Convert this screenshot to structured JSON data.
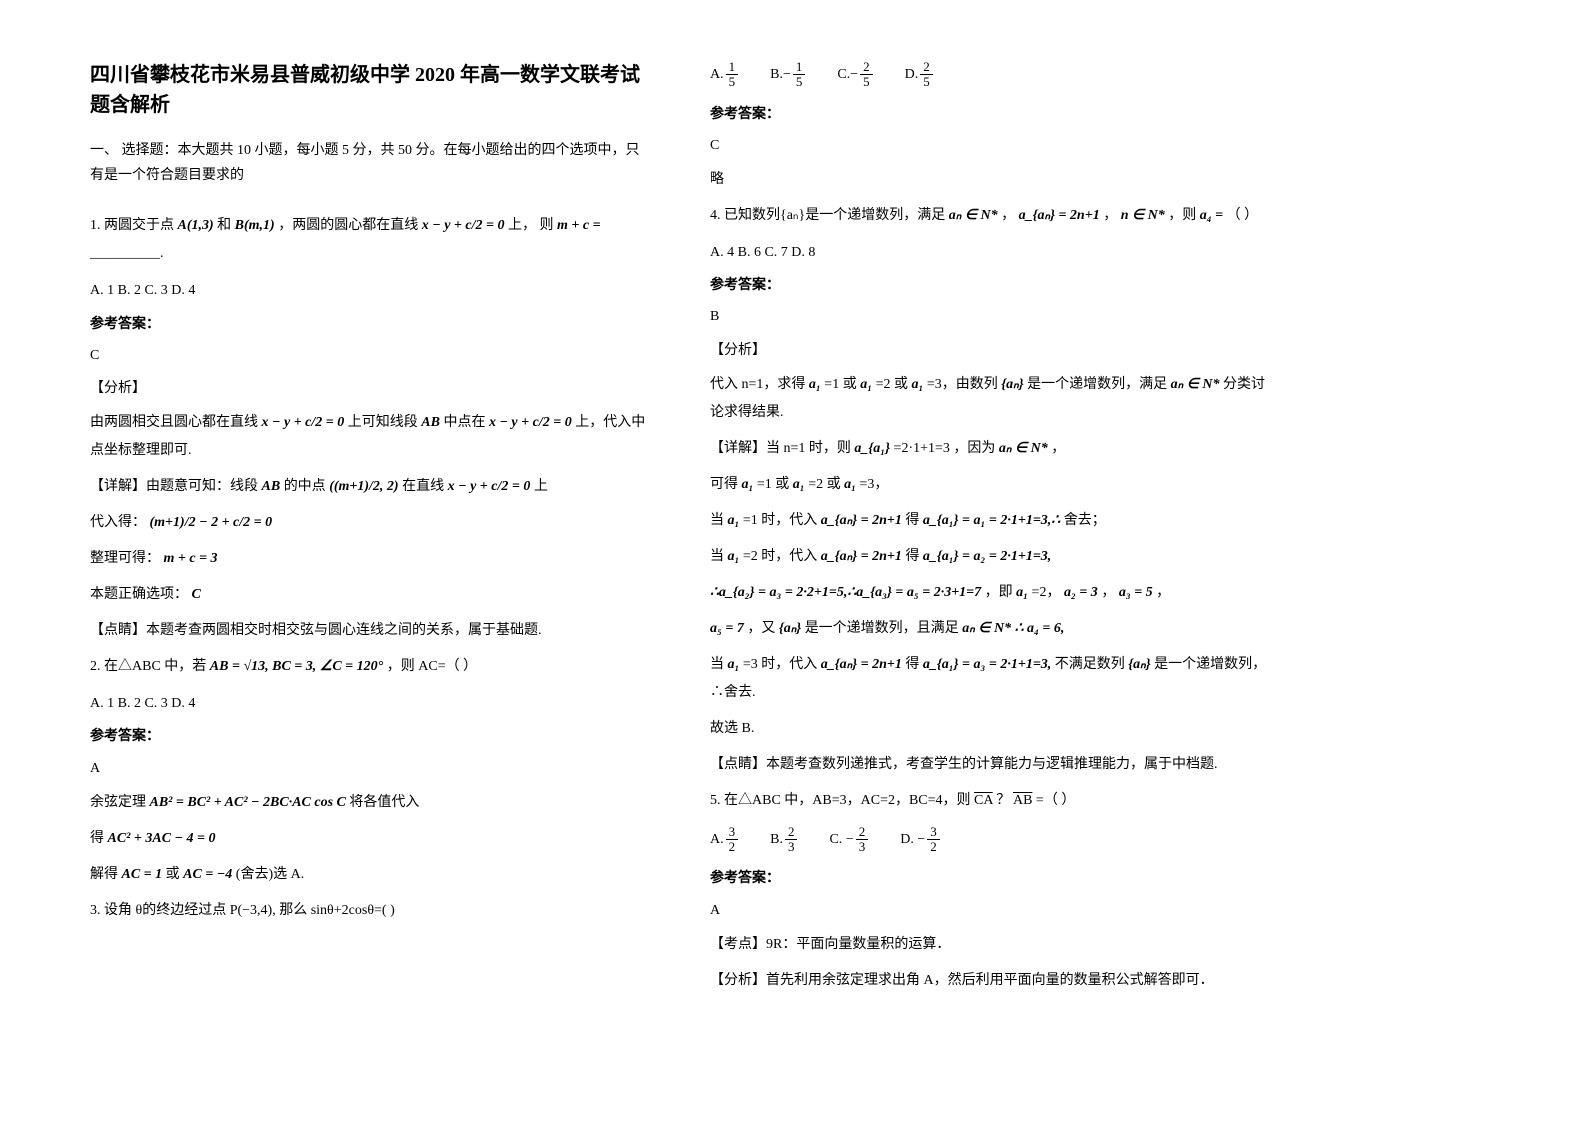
{
  "title": "四川省攀枝花市米易县普威初级中学 2020 年高一数学文联考试题含解析",
  "section1_heading": "一、 选择题：本大题共 10 小题，每小题 5 分，共 50 分。在每小题给出的四个选项中，只有是一个符合题目要求的",
  "q1": {
    "prefix": "1. 两圆交于点",
    "pt_a": "A(1,3)",
    "mid1": "和",
    "pt_b": "B(m,1)",
    "mid2": "，两圆的圆心都在直线",
    "eq1": "x − y + c/2 = 0",
    "mid3": "上，  则",
    "var1": "m + c =",
    "blank": " __________.",
    "opts": "A. 1    B. 2    C. 3    D. 4",
    "answer_label": "参考答案：",
    "answer": "C",
    "analysis_tag": "【分析】",
    "analysis_body": "由两圆相交且圆心都在直线",
    "analysis_eq1": "x − y + c/2 = 0",
    "analysis_body2": "上可知线段",
    "ab": "AB",
    "analysis_body3": "中点在",
    "analysis_eq2": "x − y + c/2 = 0",
    "analysis_body4": "上，代入中点坐标整理即可.",
    "detail_tag": "【详解】由题意可知：线段",
    "detail_ab": "AB",
    "detail_2": "的中点",
    "midpoint": "((m+1)/2, 2)",
    "detail_3": "在直线",
    "detail_eq": "x − y + c/2 = 0",
    "detail_4": "上",
    "sub_label": "代入得：",
    "sub_eq": "(m+1)/2 − 2 + c/2 = 0",
    "simplify_label": "整理可得：",
    "simplify_eq": "m + c = 3",
    "correct_label": "本题正确选项：",
    "correct": "C",
    "point_tag": "【点睛】本题考查两圆相交时相交弦与圆心连线之间的关系，属于基础题."
  },
  "q2": {
    "prefix": "2. 在△ABC 中，若",
    "cond": "AB = √13, BC = 3, ∠C = 120°",
    "suffix": "，则 AC=（            ）",
    "opts": "A. 1    B. 2            C. 3    D. 4",
    "answer_label": "参考答案：",
    "answer": "A",
    "step1_label": "余弦定理",
    "step1_eq": "AB² = BC² + AC² − 2BC·AC cos C",
    "step1_suffix": "将各值代入",
    "step2_label": "得",
    "step2_eq": "AC² + 3AC − 4 = 0",
    "step3_label": "解得",
    "step3_eq1": "AC = 1",
    "step3_mid": "或",
    "step3_eq2": "AC = −4",
    "step3_suffix": "(舍去)选 A."
  },
  "q3": {
    "text": "3. 设角 θ的终边经过点 P(−3,4), 那么 sinθ+2cosθ=(      )",
    "opt_a": "A.",
    "opt_a_frac_num": "1",
    "opt_a_frac_den": "5",
    "opt_b": "B.",
    "opt_b_neg": "−",
    "opt_b_frac_num": "1",
    "opt_b_frac_den": "5",
    "opt_c": "C.",
    "opt_c_neg": "−",
    "opt_c_frac_num": "2",
    "opt_c_frac_den": "5",
    "opt_d": "D.",
    "opt_d_frac_num": "2",
    "opt_d_frac_den": "5",
    "answer_label": "参考答案：",
    "answer": "C",
    "extra": "略"
  },
  "q4": {
    "prefix": "4. 已知数列{aₙ}是一个递增数列，满足",
    "c1": "aₙ ∈ N*",
    "mid1": "，",
    "c2": "a_{aₙ} = 2n+1",
    "mid2": "，",
    "c3": "n ∈ N*",
    "mid3": "，则",
    "c4": "a₄ =",
    "suffix": "（           ）",
    "opts": "A. 4    B. 6    C. 7    D. 8",
    "answer_label": "参考答案：",
    "answer": "B",
    "analysis_tag": "【分析】",
    "a1": "代入 n=1，求得",
    "a1_e1": "a₁",
    "a1_t1": "=1 或",
    "a1_e2": "a₁",
    "a1_t2": "=2 或",
    "a1_e3": "a₁",
    "a1_t3": "=3，由数列",
    "a1_e4": "{aₙ}",
    "a1_t4": "是一个递增数列，满足",
    "a1_e5": "aₙ ∈ N*",
    "a1_t5": "分类讨论求得结果.",
    "d_tag": "【详解】当 n=1 时，则",
    "d_e1": "a_{a₁}",
    "d_t1": "=2·1+1=3",
    "d_t2": "，因为",
    "d_e2": "aₙ ∈ N*",
    "d_t3": "，",
    "l2": "可得",
    "l2_e1": "a₁",
    "l2_t1": "=1 或",
    "l2_e2": "a₁",
    "l2_t2": "=2 或",
    "l2_e3": "a₁",
    "l2_t3": "=3，",
    "l3": "当",
    "l3_e1": "a₁",
    "l3_t1": "=1 时，代入",
    "l3_e2": "a_{aₙ} = 2n+1",
    "l3_t2": "得",
    "l3_e3": "a_{a₁} = a₁ = 2·1+1=3,∴",
    "l3_t3": "舍去；",
    "l4": "当",
    "l4_e1": "a₁",
    "l4_t1": "=2 时，代入",
    "l4_e2": "a_{aₙ} = 2n+1",
    "l4_t2": "得",
    "l4_e3": "a_{a₁} = a₂ = 2·1+1=3,",
    "l5_e1": "∴a_{a₂} = a₃ = 2·2+1=5,∴a_{a₃} = a₅ = 2·3+1=7",
    "l5_t1": "，即",
    "l5_e2": "a₁",
    "l5_t2": "=2，",
    "l5_e3": "a₂ = 3",
    "l5_t3": "，",
    "l5_e4": "a₃ = 5",
    "l5_t4": "，",
    "l6_e1": "a₅ = 7",
    "l6_t1": "，又",
    "l6_e2": "{aₙ}",
    "l6_t2": "是一个递增数列，且满足",
    "l6_e3": "aₙ ∈ N* ∴ a₄ = 6,",
    "l7": "当",
    "l7_e1": "a₁",
    "l7_t1": "=3 时，代入",
    "l7_e2": "a_{aₙ} = 2n+1",
    "l7_t2": "得",
    "l7_e3": "a_{a₁} = a₃ = 2·1+1=3,",
    "l7_t3": "不满足数列",
    "l7_e4": "{aₙ}",
    "l7_t4": "是一个递增数列，∴舍去.",
    "conclusion": "故选 B.",
    "point": "【点睛】本题考查数列递推式，考查学生的计算能力与逻辑推理能力，属于中档题."
  },
  "q5": {
    "prefix": "5. 在△ABC 中，AB=3，AC=2，BC=4，则",
    "vec1": "CA",
    "dot": " ？",
    "vec2": "AB",
    "suffix": "   =（      ）",
    "opt_a": "A.",
    "opt_a_frac_num": "3",
    "opt_a_frac_den": "2",
    "opt_b": "B.",
    "opt_b_frac_num": "2",
    "opt_b_frac_den": "3",
    "opt_c": "C.  −",
    "opt_c_frac_num": "2",
    "opt_c_frac_den": "3",
    "opt_d": "D.  −",
    "opt_d_frac_num": "3",
    "opt_d_frac_den": "2",
    "answer_label": "参考答案：",
    "answer": "A",
    "point1": "【考点】9R：平面向量数量积的运算．",
    "point2": "【分析】首先利用余弦定理求出角 A，然后利用平面向量的数量积公式解答即可．"
  }
}
